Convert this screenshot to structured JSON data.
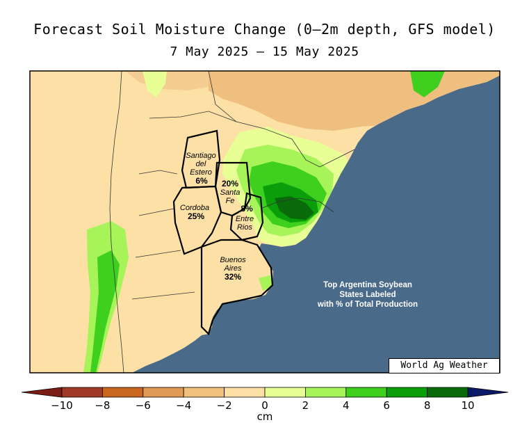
{
  "title": "Forecast Soil Moisture Change (0—2m depth, GFS model)",
  "subtitle": "7 May 2025 — 15 May 2025",
  "credit": "World Ag Weather",
  "note": [
    "Top Argentina Soybean",
    "States Labeled",
    "with % of Total Production"
  ],
  "provinces": [
    {
      "name_lines": [
        "Santiago",
        "del",
        "Estero"
      ],
      "pct": "6%"
    },
    {
      "name_lines": [
        "Santa",
        "Fe"
      ],
      "pct": "20%"
    },
    {
      "name_lines": [
        "Cordoba"
      ],
      "pct": "25%"
    },
    {
      "name_lines": [
        "Entre",
        "Rios"
      ],
      "pct": "8%"
    },
    {
      "name_lines": [
        "Buenos",
        "Aires"
      ],
      "pct": "32%"
    }
  ],
  "colorbar": {
    "unit": "cm",
    "ticks": [
      "−10",
      "−8",
      "−6",
      "−4",
      "−2",
      "0",
      "2",
      "4",
      "6",
      "8",
      "10"
    ],
    "colors": [
      "#9e3a26",
      "#c9661f",
      "#e09a55",
      "#f1c07c",
      "#fce0a6",
      "#e8ff96",
      "#a7f35a",
      "#3ecf1f",
      "#0b9e0b",
      "#0a6b0a"
    ],
    "low_color": "#7a1d14",
    "high_color": "#0b1a66"
  },
  "colors": {
    "ocean": "#4a6a8a",
    "land_dry": "#fce0a6",
    "land_drier": "#efbf80"
  }
}
